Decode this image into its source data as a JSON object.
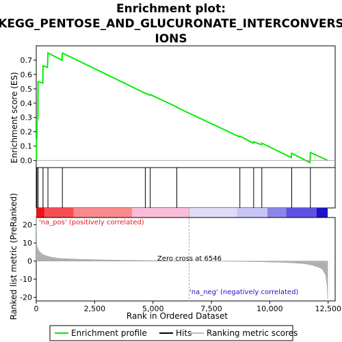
{
  "chart_data": {
    "type": "line",
    "title_lines": [
      "Enrichment plot:",
      "KEGG_PENTOSE_AND_GLUCURONATE_INTERCONVERS",
      "IONS"
    ],
    "top_panel": {
      "ylabel": "Enrichment score (ES)",
      "ylim": [
        -0.05,
        0.8
      ],
      "yticks": [
        "0.0",
        "0.1",
        "0.2",
        "0.3",
        "0.4",
        "0.5",
        "0.6",
        "0.7"
      ],
      "ytick_values": [
        0.0,
        0.1,
        0.2,
        0.3,
        0.4,
        0.5,
        0.6,
        0.7
      ],
      "series": [
        {
          "name": "Enrichment profile",
          "x": [
            0,
            8,
            10,
            25,
            30,
            70,
            80,
            280,
            290,
            480,
            500,
            1100,
            1120,
            4650,
            4670,
            4860,
            4880,
            6000,
            6020,
            8700,
            8720,
            9290,
            9310,
            9640,
            9660,
            10920,
            10940,
            11720,
            11740,
            12480
          ],
          "y": [
            0.0,
            0.0,
            0.15,
            0.15,
            0.29,
            0.29,
            0.55,
            0.54,
            0.66,
            0.65,
            0.75,
            0.7,
            0.75,
            0.47,
            0.47,
            0.455,
            0.46,
            0.375,
            0.37,
            0.165,
            0.17,
            0.12,
            0.13,
            0.11,
            0.12,
            0.02,
            0.05,
            -0.015,
            0.055,
            0.0
          ]
        }
      ]
    },
    "hits": [
      8,
      30,
      80,
      290,
      500,
      1120,
      4670,
      4880,
      6020,
      8720,
      9310,
      9660,
      10940,
      11740
    ],
    "bottom_panel": {
      "ylabel_lines": [
        "Ranked list metric (PreRanked)"
      ],
      "ylim": [
        -22,
        24
      ],
      "yticks": [
        "20",
        "10",
        "0",
        "-10",
        "-20"
      ],
      "ytick_values": [
        20,
        10,
        0,
        -10,
        -20
      ],
      "xlabel": "Rank in Ordered Dataset",
      "xlim": [
        0,
        12800
      ],
      "xticks": [
        "0",
        "2,500",
        "5,000",
        "7,500",
        "10,000",
        "12,500"
      ],
      "xtick_values": [
        0,
        2500,
        5000,
        7500,
        10000,
        12500
      ],
      "metric_profile": {
        "x": [
          0,
          20,
          60,
          150,
          300,
          600,
          1000,
          2000,
          3000,
          4000,
          5000,
          6000,
          6546,
          7500,
          8500,
          9500,
          10500,
          11000,
          11500,
          11800,
          12000,
          12200,
          12300,
          12400,
          12460,
          12480
        ],
        "y": [
          24,
          9,
          7,
          5,
          3.5,
          2.2,
          1.4,
          0.9,
          0.6,
          0.35,
          0.2,
          0.08,
          0.0,
          -0.1,
          -0.2,
          -0.35,
          -0.7,
          -1.0,
          -1.5,
          -2.2,
          -3,
          -4,
          -5.5,
          -8,
          -14,
          -21
        ]
      },
      "zero_cross_label": "Zero cross at 6546",
      "zero_cross": 6546,
      "pos_label": "'na_pos' (positively correlated)",
      "neg_label": "'na_neg' (negatively correlated)"
    },
    "color_bar_segments": [
      {
        "from": 0,
        "to": 350,
        "color": "#e8161b"
      },
      {
        "from": 350,
        "to": 1600,
        "color": "#f64e52"
      },
      {
        "from": 1600,
        "to": 4100,
        "color": "#fb8a8c"
      },
      {
        "from": 4100,
        "to": 6546,
        "color": "#fbbcd9"
      },
      {
        "from": 6546,
        "to": 8600,
        "color": "#dedcf6"
      },
      {
        "from": 8600,
        "to": 9900,
        "color": "#c8c4f4"
      },
      {
        "from": 9900,
        "to": 10700,
        "color": "#8d86e9"
      },
      {
        "from": 10700,
        "to": 12000,
        "color": "#5e52e0"
      },
      {
        "from": 12000,
        "to": 12480,
        "color": "#1c12c8"
      }
    ],
    "legend": [
      {
        "label": "Enrichment profile",
        "color": "#00ee00"
      },
      {
        "label": "Hits",
        "color": "#000000"
      },
      {
        "label": "Ranking metric scores",
        "color": "#bbbbbb"
      }
    ],
    "colors": {
      "es_line": "#00ee00",
      "hit": "#000000",
      "metric_fill": "#b0b0b0",
      "pos_text": "#e8161b",
      "neg_text": "#1c12c8",
      "zero_line": "#aaaaaa"
    }
  }
}
